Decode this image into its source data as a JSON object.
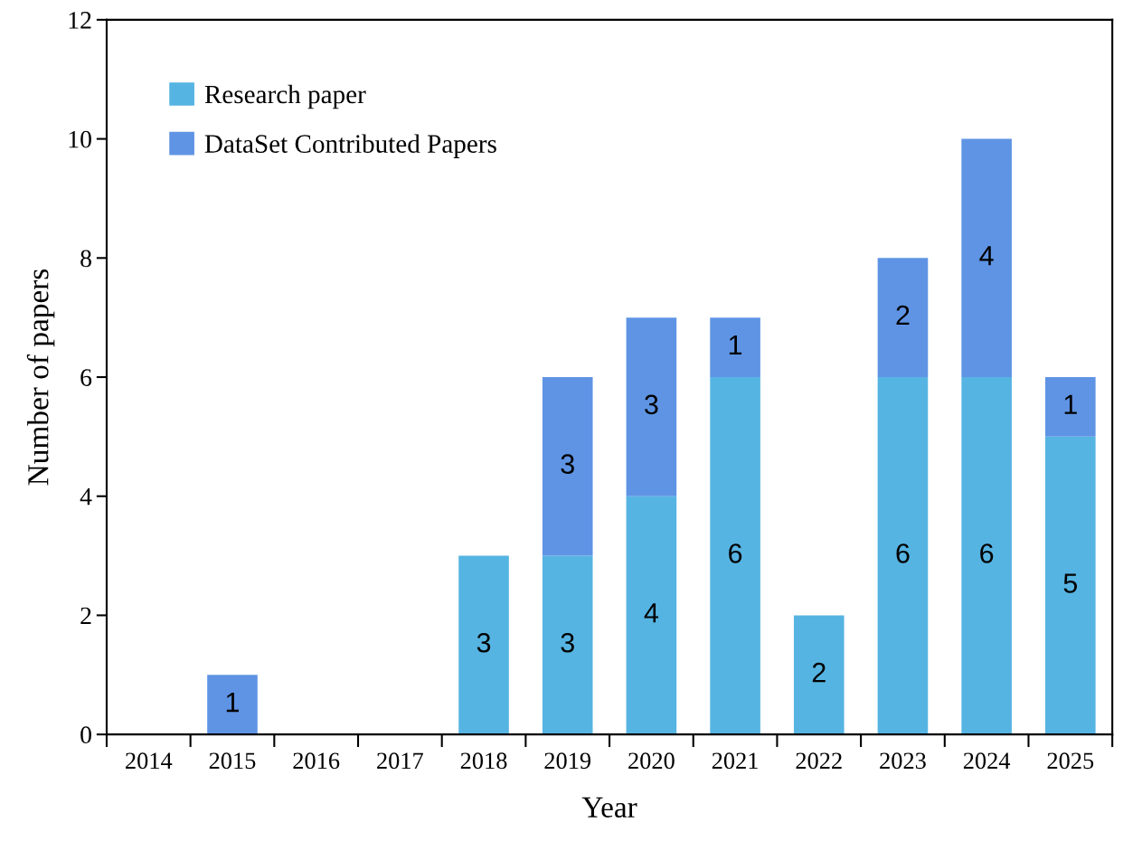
{
  "chart_data": {
    "type": "bar",
    "stacked": true,
    "xlabel": "Year",
    "ylabel": "Number of papers",
    "categories": [
      "2014",
      "2015",
      "2016",
      "2017",
      "2018",
      "2019",
      "2020",
      "2021",
      "2022",
      "2023",
      "2024",
      "2025"
    ],
    "series": [
      {
        "name": "Research paper",
        "color": "#56b4e2",
        "values": [
          0,
          0,
          0,
          0,
          3,
          3,
          4,
          6,
          2,
          6,
          6,
          5
        ],
        "value_labels": [
          null,
          null,
          null,
          null,
          "3",
          "3",
          "4",
          "6",
          "2",
          "6",
          "6",
          "5"
        ]
      },
      {
        "name": "DataSet Contributed Papers",
        "color": "#5f94e4",
        "values": [
          0,
          1,
          0,
          0,
          0,
          3,
          3,
          1,
          0,
          2,
          4,
          1
        ],
        "value_labels": [
          null,
          "1",
          null,
          null,
          null,
          "3",
          "3",
          "1",
          null,
          "2",
          "4",
          "1"
        ]
      }
    ],
    "ylim": [
      0,
      12
    ],
    "yticks": [
      0,
      2,
      4,
      6,
      8,
      10,
      12
    ],
    "legend": "top left",
    "grid": false
  }
}
